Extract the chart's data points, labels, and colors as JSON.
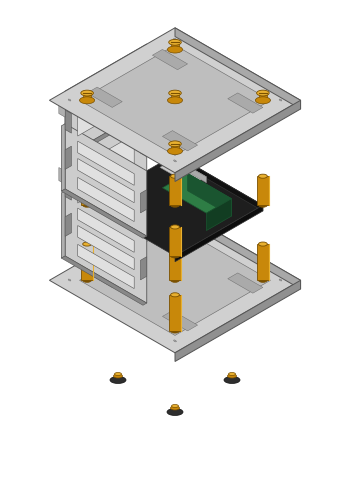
{
  "bg_color": "#ffffff",
  "plate_top": "#d0d0d0",
  "plate_right": "#a8a8a8",
  "plate_left": "#909090",
  "plate_inner": "#bebebe",
  "standoff_body": "#c8880a",
  "standoff_top": "#e8b030",
  "standoff_bot": "#7a5000",
  "screw_top": "#e8b030",
  "screw_body": "#c8880a",
  "screw_dark": "#7a5000",
  "pcb_top": "#1e1e1e",
  "pcb_right": "#111111",
  "pcb_left": "#0d0d0d",
  "chip_top": "#2e7d45",
  "chip_right": "#1a5530",
  "chip_left": "#123d22",
  "panel_top": "#cccccc",
  "panel_side": "#b0b0b0",
  "panel_dark": "#888888",
  "panel_edge": "#555555",
  "rubber": "#2e2e2e",
  "figsize": [
    3.5,
    4.84
  ],
  "dpi": 100
}
